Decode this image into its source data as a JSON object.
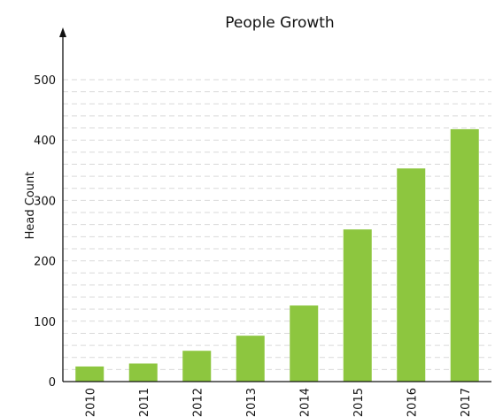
{
  "chart_data": {
    "type": "bar",
    "title": "People Growth",
    "xlabel": "",
    "ylabel": "Head Count",
    "categories": [
      "2010",
      "2011",
      "2012",
      "2013",
      "2014",
      "2015",
      "2016",
      "2017"
    ],
    "values": [
      25,
      30,
      51,
      76,
      126,
      252,
      353,
      418
    ],
    "ylim": [
      0,
      500
    ],
    "yticks": [
      0,
      100,
      200,
      300,
      400,
      500
    ],
    "bar_color": "#8dc63f",
    "grid": true,
    "grid_style": "dashed",
    "legend": "none"
  }
}
